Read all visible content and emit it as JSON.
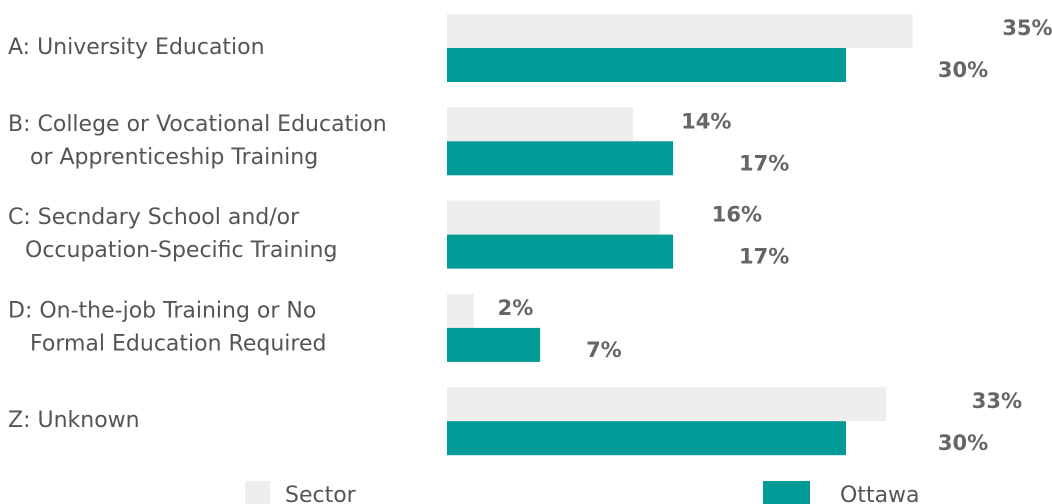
{
  "chart_data": {
    "type": "bar",
    "orientation": "horizontal",
    "categories": [
      [
        "A: University Education"
      ],
      [
        "B: College or Vocational Education",
        "or Apprenticeship Training"
      ],
      [
        "C: Secndary School and/or",
        "Occupation-Specific Training"
      ],
      [
        "D: On-the-job Training or No",
        "Formal Education Required"
      ],
      [
        "Z: Unknown"
      ]
    ],
    "series": [
      {
        "name": "Sector",
        "color": "#eeeeee",
        "values": [
          35,
          14,
          16,
          2,
          33
        ],
        "value_labels": [
          "35%",
          "14%",
          "16%",
          "2%",
          "33%"
        ]
      },
      {
        "name": "Ottawa",
        "color": "#009b96",
        "values": [
          30,
          17,
          17,
          7,
          30
        ],
        "value_labels": [
          "30%",
          "17%",
          "17%",
          "7%",
          "30%"
        ]
      }
    ],
    "legend": "bottom"
  }
}
